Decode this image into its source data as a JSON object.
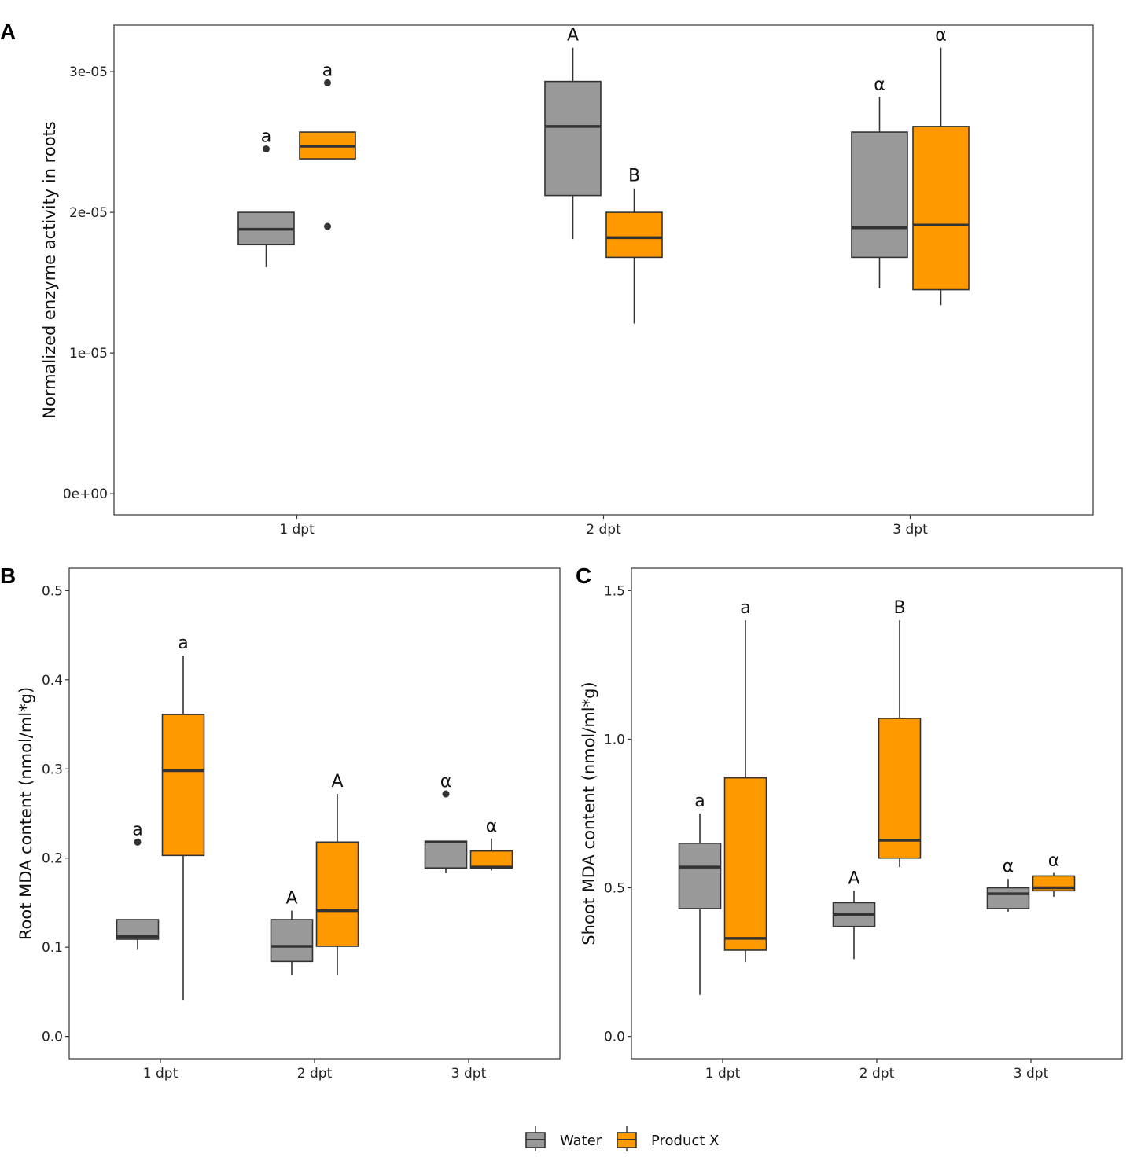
{
  "colors": {
    "water": "#999999",
    "product": "#ff9900",
    "line": "#333333",
    "frame": "#333333"
  },
  "legend": {
    "items": [
      {
        "label": "Water",
        "color": "#999999"
      },
      {
        "label": "Product X",
        "color": "#ff9900"
      }
    ]
  },
  "chart_data": [
    {
      "panel": "A",
      "type": "box",
      "ylabel": "Normalized enzyme activity in roots",
      "categories": [
        "1 dpt",
        "2 dpt",
        "3 dpt"
      ],
      "ylim": [
        -1.5e-06,
        3.33e-05
      ],
      "yticks": [
        0,
        1e-05,
        2e-05,
        3e-05
      ],
      "ytick_labels": [
        "0e+00",
        "1e-05",
        "2e-05",
        "3e-05"
      ],
      "series": [
        {
          "name": "Water",
          "boxes": [
            {
              "category": "1 dpt",
              "lower_whisker": 1.61e-05,
              "q1": 1.77e-05,
              "median": 1.88e-05,
              "q3": 2e-05,
              "upper_whisker": 2e-05,
              "outliers": [
                2.45e-05
              ],
              "sig": "a"
            },
            {
              "category": "2 dpt",
              "lower_whisker": 1.81e-05,
              "q1": 2.12e-05,
              "median": 2.61e-05,
              "q3": 2.93e-05,
              "upper_whisker": 3.17e-05,
              "outliers": [],
              "sig": "A"
            },
            {
              "category": "3 dpt",
              "lower_whisker": 1.46e-05,
              "q1": 1.68e-05,
              "median": 1.89e-05,
              "q3": 2.57e-05,
              "upper_whisker": 2.82e-05,
              "outliers": [],
              "sig": "α"
            }
          ]
        },
        {
          "name": "Product X",
          "boxes": [
            {
              "category": "1 dpt",
              "lower_whisker": 2.38e-05,
              "q1": 2.38e-05,
              "median": 2.47e-05,
              "q3": 2.57e-05,
              "upper_whisker": 2.57e-05,
              "outliers": [
                2.92e-05,
                1.9e-05
              ],
              "sig": "a"
            },
            {
              "category": "2 dpt",
              "lower_whisker": 1.21e-05,
              "q1": 1.68e-05,
              "median": 1.82e-05,
              "q3": 2e-05,
              "upper_whisker": 2.17e-05,
              "outliers": [],
              "sig": "B"
            },
            {
              "category": "3 dpt",
              "lower_whisker": 1.34e-05,
              "q1": 1.45e-05,
              "median": 1.91e-05,
              "q3": 2.61e-05,
              "upper_whisker": 3.17e-05,
              "outliers": [],
              "sig": "α"
            }
          ]
        }
      ]
    },
    {
      "panel": "B",
      "type": "box",
      "ylabel": "Root MDA content (nmol/ml*g)",
      "categories": [
        "1 dpt",
        "2 dpt",
        "3 dpt"
      ],
      "ylim": [
        -0.025,
        0.525
      ],
      "yticks": [
        0.0,
        0.1,
        0.2,
        0.3,
        0.4,
        0.5
      ],
      "ytick_labels": [
        "0.0",
        "0.1",
        "0.2",
        "0.3",
        "0.4",
        "0.5"
      ],
      "series": [
        {
          "name": "Water",
          "boxes": [
            {
              "category": "1 dpt",
              "lower_whisker": 0.097,
              "q1": 0.109,
              "median": 0.112,
              "q3": 0.131,
              "upper_whisker": 0.131,
              "outliers": [
                0.218
              ],
              "sig": "a"
            },
            {
              "category": "2 dpt",
              "lower_whisker": 0.069,
              "q1": 0.084,
              "median": 0.101,
              "q3": 0.131,
              "upper_whisker": 0.141,
              "outliers": [],
              "sig": "A"
            },
            {
              "category": "3 dpt",
              "lower_whisker": 0.183,
              "q1": 0.189,
              "median": 0.218,
              "q3": 0.219,
              "upper_whisker": 0.219,
              "outliers": [
                0.272
              ],
              "sig": "α"
            }
          ]
        },
        {
          "name": "Product X",
          "boxes": [
            {
              "category": "1 dpt",
              "lower_whisker": 0.041,
              "q1": 0.203,
              "median": 0.298,
              "q3": 0.361,
              "upper_whisker": 0.427,
              "outliers": [],
              "sig": "a"
            },
            {
              "category": "2 dpt",
              "lower_whisker": 0.069,
              "q1": 0.101,
              "median": 0.141,
              "q3": 0.218,
              "upper_whisker": 0.272,
              "outliers": [],
              "sig": "A"
            },
            {
              "category": "3 dpt",
              "lower_whisker": 0.186,
              "q1": 0.189,
              "median": 0.19,
              "q3": 0.208,
              "upper_whisker": 0.222,
              "outliers": [],
              "sig": "α"
            }
          ]
        }
      ]
    },
    {
      "panel": "C",
      "type": "box",
      "ylabel": "Shoot MDA content (nmol/ml*g)",
      "categories": [
        "1 dpt",
        "2 dpt",
        "3 dpt"
      ],
      "ylim": [
        -0.075,
        1.575
      ],
      "yticks": [
        0.0,
        0.5,
        1.0,
        1.5
      ],
      "ytick_labels": [
        "0.0",
        "0.5",
        "1.0",
        "1.5"
      ],
      "series": [
        {
          "name": "Water",
          "boxes": [
            {
              "category": "1 dpt",
              "lower_whisker": 0.14,
              "q1": 0.43,
              "median": 0.57,
              "q3": 0.65,
              "upper_whisker": 0.75,
              "outliers": [],
              "sig": "a"
            },
            {
              "category": "2 dpt",
              "lower_whisker": 0.26,
              "q1": 0.37,
              "median": 0.41,
              "q3": 0.45,
              "upper_whisker": 0.49,
              "outliers": [],
              "sig": "A"
            },
            {
              "category": "3 dpt",
              "lower_whisker": 0.42,
              "q1": 0.43,
              "median": 0.48,
              "q3": 0.5,
              "upper_whisker": 0.53,
              "outliers": [],
              "sig": "α"
            }
          ]
        },
        {
          "name": "Product X",
          "boxes": [
            {
              "category": "1 dpt",
              "lower_whisker": 0.25,
              "q1": 0.29,
              "median": 0.33,
              "q3": 0.87,
              "upper_whisker": 1.4,
              "outliers": [],
              "sig": "a"
            },
            {
              "category": "2 dpt",
              "lower_whisker": 0.57,
              "q1": 0.6,
              "median": 0.66,
              "q3": 1.07,
              "upper_whisker": 1.4,
              "outliers": [],
              "sig": "B"
            },
            {
              "category": "3 dpt",
              "lower_whisker": 0.47,
              "q1": 0.49,
              "median": 0.5,
              "q3": 0.54,
              "upper_whisker": 0.55,
              "outliers": [],
              "sig": "α"
            }
          ]
        }
      ]
    }
  ]
}
